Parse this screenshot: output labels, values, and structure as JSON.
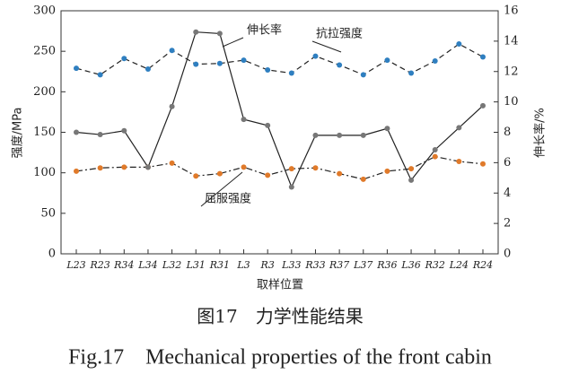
{
  "chart_data": {
    "type": "line",
    "title": "图17　力学性能结果",
    "subtitle": "Fig.17　Mechanical properties of the front cabin",
    "x_label": "取样位置",
    "y_label": "强度/MPa",
    "y2_label": "伸长率/%",
    "categories": [
      "L23",
      "R23",
      "R34",
      "L34",
      "L32",
      "L31",
      "R31",
      "L3",
      "R3",
      "L33",
      "R33",
      "R37",
      "L37",
      "R36",
      "L36",
      "R32",
      "L24",
      "R24"
    ],
    "ylim": [
      0,
      300
    ],
    "yticks": [
      0,
      50,
      100,
      150,
      200,
      250,
      300
    ],
    "y2lim": [
      0,
      16
    ],
    "y2ticks": [
      0,
      2,
      4,
      6,
      8,
      10,
      12,
      14,
      16
    ],
    "series": [
      {
        "name": "抗拉强度",
        "color": "#2f7fc0",
        "line_style": "dashed",
        "values": [
          229,
          221,
          241,
          228,
          251,
          234,
          235,
          239,
          227,
          223,
          244,
          233,
          221,
          239,
          223,
          238,
          259,
          243
        ]
      },
      {
        "name": "屈服强度",
        "color": "#e07a2a",
        "line_style": "dashdot",
        "values": [
          102,
          106,
          107,
          107,
          112,
          96,
          99,
          107,
          97,
          105,
          106,
          99,
          92,
          102,
          105,
          120,
          114,
          111
        ]
      },
      {
        "name": "伸长率",
        "color": "#777777",
        "line_style": "solid",
        "axis": "y2",
        "values": [
          8.0,
          7.85,
          8.1,
          5.7,
          9.7,
          14.6,
          14.5,
          8.85,
          8.45,
          4.4,
          7.8,
          7.8,
          7.8,
          8.25,
          4.85,
          6.85,
          8.3,
          9.75
        ]
      }
    ]
  }
}
